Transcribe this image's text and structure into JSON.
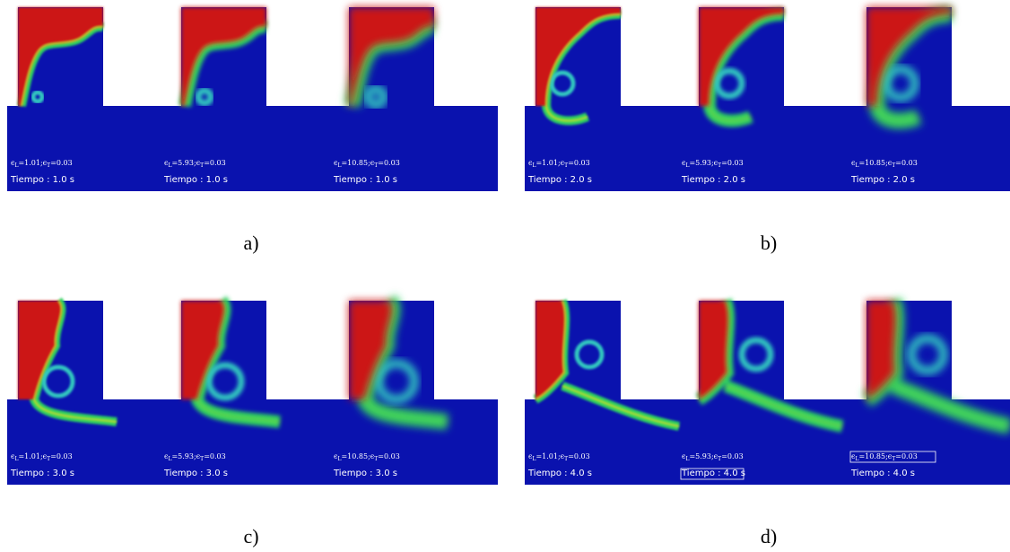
{
  "panels": [
    {
      "label": "a)",
      "frames": [
        {
          "param": [
            "ϵ",
            "L",
            "=1.01;ϵ",
            "T",
            "=0.03"
          ],
          "time": "Tiempo : 1.0 s"
        },
        {
          "param": [
            "ϵ",
            "L",
            "=5.93;ϵ",
            "T",
            "=0.03"
          ],
          "time": "Tiempo : 1.0 s"
        },
        {
          "param": [
            "ϵ",
            "L",
            "=10.85;ϵ",
            "T",
            "=0.03"
          ],
          "time": "Tiempo : 1.0 s"
        }
      ]
    },
    {
      "label": "b)",
      "frames": [
        {
          "param": [
            "ϵ",
            "L",
            "=1.01;ϵ",
            "T",
            "=0.03"
          ],
          "time": "Tiempo : 2.0 s"
        },
        {
          "param": [
            "ϵ",
            "L",
            "=5.93;ϵ",
            "T",
            "=0.03"
          ],
          "time": "Tiempo : 2.0 s"
        },
        {
          "param": [
            "ϵ",
            "L",
            "=10.85;ϵ",
            "T",
            "=0.03"
          ],
          "time": "Tiempo : 2.0 s"
        }
      ]
    },
    {
      "label": "c)",
      "frames": [
        {
          "param": [
            "ϵ",
            "L",
            "=1.01;ϵ",
            "T",
            "=0.03"
          ],
          "time": "Tiempo : 3.0 s"
        },
        {
          "param": [
            "ϵ",
            "L",
            "=5.93;ϵ",
            "T",
            "=0.03"
          ],
          "time": "Tiempo : 3.0 s"
        },
        {
          "param": [
            "ϵ",
            "L",
            "=10.85;ϵ",
            "T",
            "=0.03"
          ],
          "time": "Tiempo : 3.0 s"
        }
      ]
    },
    {
      "label": "d)",
      "frames": [
        {
          "param": [
            "ϵ",
            "L",
            "=1.01;ϵ",
            "T",
            "=0.03"
          ],
          "time": "Tiempo : 4.0 s"
        },
        {
          "param": [
            "ϵ",
            "L",
            "=5.93;ϵ",
            "T",
            "=0.03"
          ],
          "time": "Tiempo : 4.0 s"
        },
        {
          "param": [
            "ϵ",
            "L",
            "=10.85;ϵ",
            "T",
            "=0.03"
          ],
          "time": "Tiempo : 4.0 s"
        }
      ]
    }
  ]
}
